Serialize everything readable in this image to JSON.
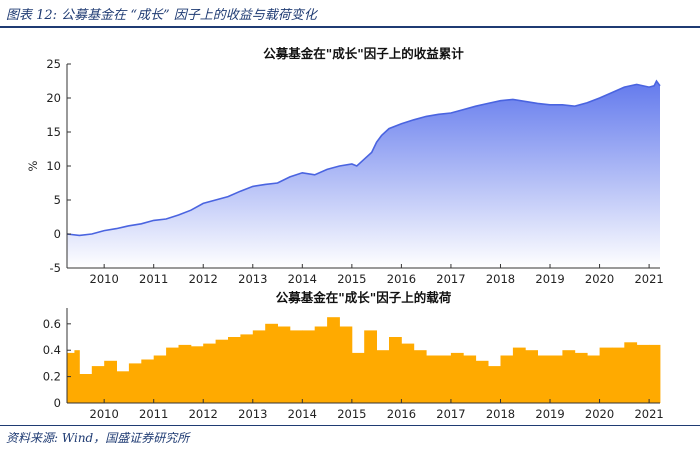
{
  "figure_title": "图表 12: 公募基金在 “成长” 因子上的收益与载荷变化",
  "source": "资料来源: Wind，国盛证券研究所",
  "colors": {
    "area_line": "#4a64e0",
    "area_fill_top": "#5b73ec",
    "area_fill_bottom": "#ffffff",
    "bar_fill": "#ffaa00",
    "frame": "#1f3b73"
  },
  "chart_data": [
    {
      "type": "area",
      "title": "公募基金在\"成长\"因子上的收益累计",
      "xlabel": "",
      "ylabel": "%",
      "xlim": [
        2009.25,
        2021.22
      ],
      "ylim": [
        -5,
        25
      ],
      "x_ticks": [
        "2010",
        "2011",
        "2012",
        "2013",
        "2014",
        "2015",
        "2016",
        "2017",
        "2018",
        "2019",
        "2020",
        "2021"
      ],
      "y_ticks": [
        "-5",
        "0",
        "5",
        "10",
        "15",
        "20",
        "25"
      ],
      "grid": false,
      "x": [
        2009.25,
        2009.5,
        2009.75,
        2010.0,
        2010.25,
        2010.5,
        2010.75,
        2011.0,
        2011.25,
        2011.5,
        2011.75,
        2012.0,
        2012.25,
        2012.5,
        2012.75,
        2013.0,
        2013.25,
        2013.5,
        2013.75,
        2014.0,
        2014.25,
        2014.5,
        2014.75,
        2015.0,
        2015.1,
        2015.25,
        2015.4,
        2015.5,
        2015.6,
        2015.75,
        2016.0,
        2016.25,
        2016.5,
        2016.75,
        2017.0,
        2017.25,
        2017.5,
        2017.75,
        2018.0,
        2018.25,
        2018.5,
        2018.75,
        2019.0,
        2019.25,
        2019.5,
        2019.75,
        2020.0,
        2020.25,
        2020.5,
        2020.75,
        2021.0,
        2021.1,
        2021.15,
        2021.22
      ],
      "values": [
        0.0,
        -0.2,
        0.0,
        0.5,
        0.8,
        1.2,
        1.5,
        2.0,
        2.2,
        2.8,
        3.5,
        4.5,
        5.0,
        5.5,
        6.3,
        7.0,
        7.3,
        7.5,
        8.4,
        9.0,
        8.7,
        9.5,
        10.0,
        10.3,
        10.0,
        11.0,
        12.0,
        13.5,
        14.5,
        15.5,
        16.2,
        16.8,
        17.3,
        17.6,
        17.8,
        18.3,
        18.8,
        19.2,
        19.6,
        19.8,
        19.5,
        19.2,
        19.0,
        19.0,
        18.8,
        19.3,
        20.0,
        20.8,
        21.6,
        22.0,
        21.6,
        21.8,
        22.5,
        21.8
      ]
    },
    {
      "type": "bar",
      "title": "公募基金在\"成长\"因子上的载荷",
      "xlabel": "",
      "ylabel": "",
      "xlim": [
        2009.25,
        2021.22
      ],
      "ylim": [
        0,
        0.72
      ],
      "x_ticks": [
        "2010",
        "2011",
        "2012",
        "2013",
        "2014",
        "2015",
        "2016",
        "2017",
        "2018",
        "2019",
        "2020",
        "2021"
      ],
      "y_ticks": [
        "0",
        "0.2",
        "0.4",
        "0.6"
      ],
      "grid": false,
      "x": [
        2009.25,
        2009.4,
        2009.5,
        2009.75,
        2010.0,
        2010.25,
        2010.5,
        2010.75,
        2011.0,
        2011.25,
        2011.5,
        2011.75,
        2012.0,
        2012.25,
        2012.5,
        2012.75,
        2013.0,
        2013.25,
        2013.5,
        2013.75,
        2014.0,
        2014.25,
        2014.5,
        2014.75,
        2015.0,
        2015.25,
        2015.5,
        2015.75,
        2016.0,
        2016.25,
        2016.5,
        2016.75,
        2017.0,
        2017.25,
        2017.5,
        2017.75,
        2018.0,
        2018.25,
        2018.5,
        2018.75,
        2019.0,
        2019.25,
        2019.5,
        2019.75,
        2020.0,
        2020.25,
        2020.5,
        2020.75,
        2021.0,
        2021.22
      ],
      "values": [
        0.38,
        0.4,
        0.22,
        0.28,
        0.32,
        0.24,
        0.3,
        0.33,
        0.36,
        0.42,
        0.44,
        0.43,
        0.45,
        0.48,
        0.5,
        0.52,
        0.55,
        0.6,
        0.58,
        0.55,
        0.55,
        0.58,
        0.65,
        0.58,
        0.38,
        0.55,
        0.4,
        0.5,
        0.45,
        0.4,
        0.36,
        0.36,
        0.38,
        0.36,
        0.32,
        0.28,
        0.36,
        0.42,
        0.4,
        0.36,
        0.36,
        0.4,
        0.38,
        0.36,
        0.42,
        0.42,
        0.46,
        0.44,
        0.44,
        0.36
      ]
    }
  ]
}
